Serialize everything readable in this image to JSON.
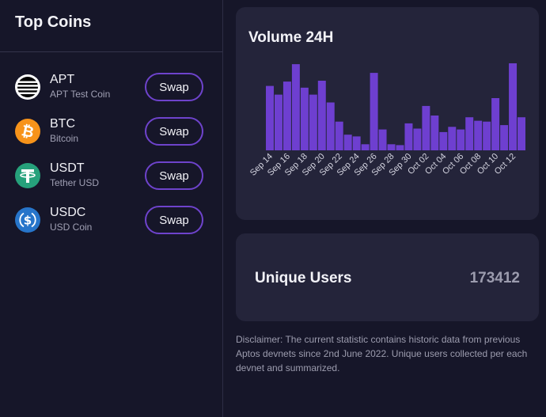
{
  "sidebar": {
    "title": "Top Coins",
    "coins": [
      {
        "symbol": "APT",
        "name": "APT Test Coin",
        "swap_label": "Swap",
        "icon": "aptos-logo-icon",
        "color": "#000000"
      },
      {
        "symbol": "BTC",
        "name": "Bitcoin",
        "swap_label": "Swap",
        "icon": "bitcoin-logo-icon",
        "color": "#f7931a"
      },
      {
        "symbol": "USDT",
        "name": "Tether USD",
        "swap_label": "Swap",
        "icon": "tether-logo-icon",
        "color": "#26a17b"
      },
      {
        "symbol": "USDC",
        "name": "USD Coin",
        "swap_label": "Swap",
        "icon": "usdc-logo-icon",
        "color": "#2775ca"
      }
    ]
  },
  "volume": {
    "title": "Volume 24H"
  },
  "chart_data": {
    "type": "bar",
    "title": "Volume 24H",
    "xlabel": "",
    "ylabel": "",
    "x_tick_labels": [
      "Sep 14",
      "Sep 16",
      "Sep 18",
      "Sep 20",
      "Sep 22",
      "Sep 24",
      "Sep 26",
      "Sep 28",
      "Sep 30",
      "Oct 02",
      "Oct 04",
      "Oct 06",
      "Oct 08",
      "Oct 10",
      "Oct 12"
    ],
    "categories": [
      "Sep 14",
      "Sep 15",
      "Sep 16",
      "Sep 17",
      "Sep 18",
      "Sep 19",
      "Sep 20",
      "Sep 21",
      "Sep 22",
      "Sep 23",
      "Sep 24",
      "Sep 25",
      "Sep 26",
      "Sep 27",
      "Sep 28",
      "Sep 29",
      "Sep 30",
      "Oct 01",
      "Oct 02",
      "Oct 03",
      "Oct 04",
      "Oct 05",
      "Oct 06",
      "Oct 07",
      "Oct 08",
      "Oct 09",
      "Oct 10",
      "Oct 11",
      "Oct 12",
      "Oct 13"
    ],
    "values": [
      74,
      64,
      79,
      99,
      72,
      64,
      80,
      55,
      33,
      18,
      16,
      7,
      89,
      24,
      7,
      6,
      31,
      25,
      51,
      40,
      21,
      27,
      24,
      38,
      34,
      33,
      60,
      29,
      100,
      38
    ],
    "color": "#6e3fd0",
    "grid": false,
    "legend": "none"
  },
  "users": {
    "label": "Unique Users",
    "value": "173412"
  },
  "disclaimer": "Disclaimer: The current statistic contains historic data from previous Aptos devnets since 2nd June 2022. Unique users collected per each devnet and summarized."
}
